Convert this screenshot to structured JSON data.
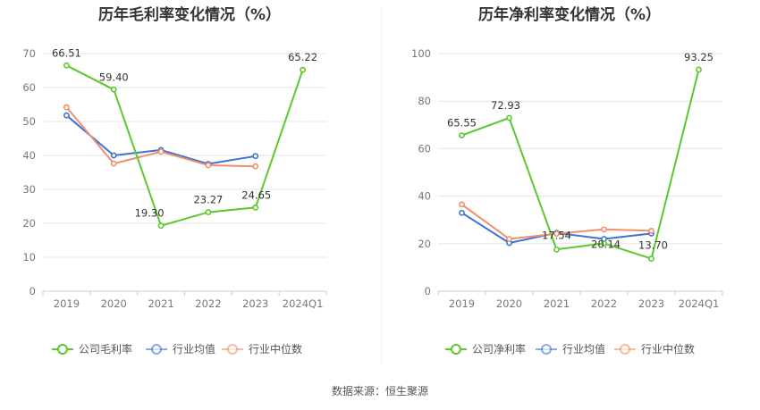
{
  "source_text": "数据来源：恒生聚源",
  "colors": {
    "company": "#5bc82b",
    "industry_avg": "#3d73d6",
    "industry_median": "#f0906a"
  },
  "chart_data": [
    {
      "type": "line",
      "title": "历年毛利率变化情况（%）",
      "categories": [
        "2019",
        "2020",
        "2021",
        "2022",
        "2023",
        "2024Q1"
      ],
      "ylim": [
        0,
        70
      ],
      "yticks": [
        "0",
        "10",
        "20",
        "30",
        "40",
        "50",
        "60",
        "70"
      ],
      "grid": true,
      "legend_position": "bottom",
      "series": [
        {
          "name": "公司毛利率",
          "color": "#5bc82b",
          "values": [
            66.51,
            59.4,
            19.3,
            23.27,
            24.65,
            65.22
          ],
          "labels": [
            "66.51",
            "59.40",
            "19.30",
            "23.27",
            "24.65",
            "65.22"
          ]
        },
        {
          "name": "行业均值",
          "color": "#3d73d6",
          "values": [
            51.8,
            40.0,
            41.6,
            37.5,
            39.8,
            null
          ]
        },
        {
          "name": "行业中位数",
          "color": "#f0906a",
          "values": [
            54.2,
            37.6,
            41.1,
            37.1,
            36.8,
            null
          ]
        }
      ]
    },
    {
      "type": "line",
      "title": "历年净利率变化情况（%）",
      "categories": [
        "2019",
        "2020",
        "2021",
        "2022",
        "2023",
        "2024Q1"
      ],
      "ylim": [
        0,
        100
      ],
      "yticks": [
        "0",
        "20",
        "40",
        "60",
        "80",
        "100"
      ],
      "grid": true,
      "legend_position": "bottom",
      "series": [
        {
          "name": "公司净利率",
          "color": "#5bc82b",
          "values": [
            65.55,
            72.93,
            17.54,
            20.14,
            13.7,
            93.25
          ],
          "labels": [
            "65.55",
            "72.93",
            "17.54",
            "20.14",
            "13.70",
            "93.25"
          ]
        },
        {
          "name": "行业均值",
          "color": "#3d73d6",
          "values": [
            33.0,
            20.3,
            24.5,
            22.0,
            24.3,
            null
          ]
        },
        {
          "name": "行业中位数",
          "color": "#f0906a",
          "values": [
            36.5,
            22.0,
            24.2,
            26.0,
            25.4,
            null
          ]
        }
      ]
    }
  ]
}
